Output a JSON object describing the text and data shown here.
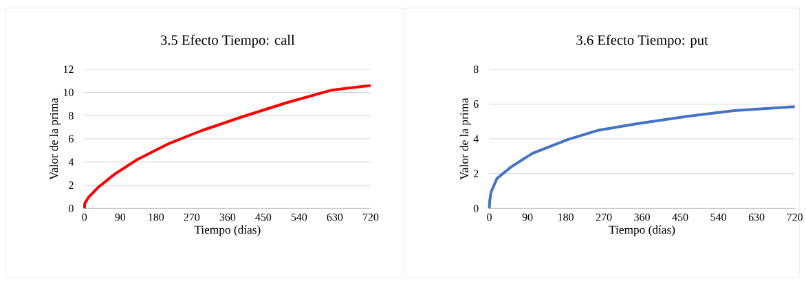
{
  "chart_data": [
    {
      "type": "line",
      "title": "3.5 Efecto Tiempo: call",
      "xlabel": "Tiempo (días)",
      "ylabel": "Valor de la prima",
      "x": [
        0,
        1,
        4,
        10,
        35,
        75,
        132,
        213,
        294,
        397,
        507,
        622,
        720
      ],
      "series": [
        {
          "color": "#ff0000",
          "values": [
            0,
            0.45,
            0.6,
            0.94,
            1.83,
            2.93,
            4.2,
            5.6,
            6.7,
            7.9,
            9.1,
            10.2,
            10.6
          ]
        }
      ],
      "xlim": [
        0,
        720
      ],
      "xticks": [
        0,
        90,
        180,
        270,
        360,
        450,
        540,
        630,
        720
      ],
      "ylim": [
        0,
        12
      ],
      "yticks": [
        0,
        2,
        4,
        6,
        8,
        10,
        12
      ],
      "grid": "y"
    },
    {
      "type": "line",
      "title": "3.6 Efecto Tiempo: put",
      "xlabel": "Tiempo (días)",
      "ylabel": "Valor de la prima",
      "x": [
        0,
        1,
        4,
        18,
        51,
        102,
        186,
        258,
        354,
        465,
        577,
        720
      ],
      "series": [
        {
          "color": "#4472c4",
          "values": [
            0,
            0.45,
            0.93,
            1.72,
            2.38,
            3.17,
            3.97,
            4.5,
            4.89,
            5.29,
            5.62,
            5.85
          ]
        }
      ],
      "xlim": [
        0,
        720
      ],
      "xticks": [
        0,
        90,
        180,
        270,
        360,
        450,
        540,
        630,
        720
      ],
      "ylim": [
        0,
        8
      ],
      "yticks": [
        0,
        2,
        4,
        6,
        8
      ],
      "grid": "y"
    }
  ]
}
